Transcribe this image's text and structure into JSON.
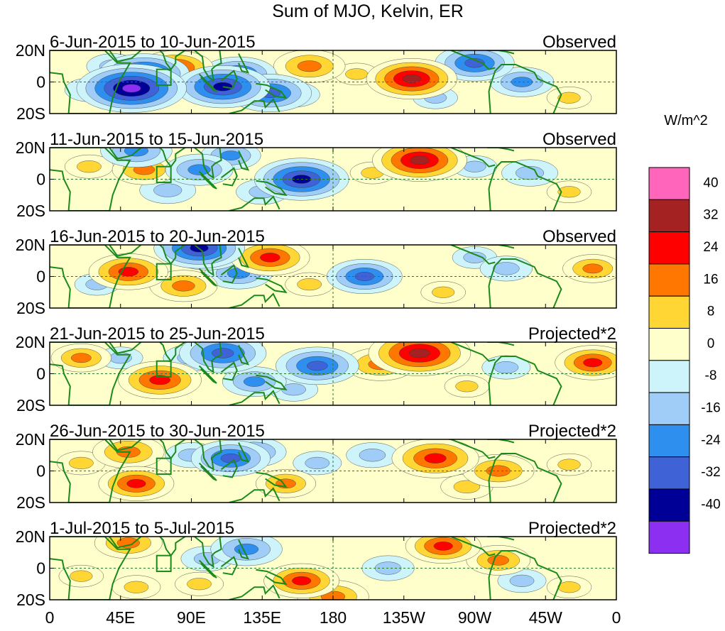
{
  "chart_data": {
    "type": "heatmap",
    "title": "Sum of MJO, Kelvin, ER",
    "colorbar": {
      "label": "W/m^2",
      "levels": [
        "40",
        "32",
        "24",
        "16",
        "8",
        "0",
        "-8",
        "-16",
        "-24",
        "-32",
        "-40"
      ],
      "colors": [
        "#ff66bb",
        "#a52222",
        "#ff0000",
        "#ff7700",
        "#ffd633",
        "#ffffcc",
        "#cdf4fb",
        "#a0cdf8",
        "#2e8fef",
        "#3f63d6",
        "#000096",
        "#8d2ff0"
      ]
    },
    "x_ticks": [
      "0",
      "45E",
      "90E",
      "135E",
      "180",
      "135W",
      "90W",
      "45W",
      "0"
    ],
    "y_ticks": [
      "20N",
      "0",
      "20S"
    ],
    "panels": [
      {
        "dates": "6-Jun-2015 to 10-Jun-2015",
        "label": "Observed",
        "blobs": [
          {
            "lon": 60,
            "lat": 5,
            "v": -34
          },
          {
            "lon": 52,
            "lat": -4,
            "v": -44
          },
          {
            "lon": 110,
            "lat": -3,
            "v": -36
          },
          {
            "lon": 120,
            "lat": 5,
            "v": -26
          },
          {
            "lon": 140,
            "lat": -7,
            "v": -30
          },
          {
            "lon": 80,
            "lat": 9,
            "v": 26
          },
          {
            "lon": 165,
            "lat": 10,
            "v": 24
          },
          {
            "lon": 230,
            "lat": 2,
            "v": 34
          },
          {
            "lon": 155,
            "lat": -8,
            "v": -14
          },
          {
            "lon": 270,
            "lat": 12,
            "v": -28
          },
          {
            "lon": 300,
            "lat": 0,
            "v": -20
          },
          {
            "lon": 195,
            "lat": 5,
            "v": 10
          },
          {
            "lon": 25,
            "lat": -5,
            "v": -12
          },
          {
            "lon": 330,
            "lat": -10,
            "v": 10
          },
          {
            "lon": 40,
            "lat": 10,
            "v": -14
          },
          {
            "lon": 245,
            "lat": -10,
            "v": -10
          }
        ]
      },
      {
        "dates": "11-Jun-2015 to 15-Jun-2015",
        "label": "Observed",
        "blobs": [
          {
            "lon": 160,
            "lat": 0,
            "v": -36
          },
          {
            "lon": 95,
            "lat": 6,
            "v": -22
          },
          {
            "lon": 75,
            "lat": -7,
            "v": -16
          },
          {
            "lon": 235,
            "lat": 12,
            "v": 36
          },
          {
            "lon": 60,
            "lat": 6,
            "v": 20
          },
          {
            "lon": 55,
            "lat": 18,
            "v": -24
          },
          {
            "lon": 135,
            "lat": -8,
            "v": -14
          },
          {
            "lon": 205,
            "lat": 4,
            "v": 10
          },
          {
            "lon": 25,
            "lat": 8,
            "v": 12
          },
          {
            "lon": 305,
            "lat": 4,
            "v": -16
          },
          {
            "lon": 330,
            "lat": -8,
            "v": 10
          },
          {
            "lon": 115,
            "lat": 15,
            "v": -18
          },
          {
            "lon": 270,
            "lat": 8,
            "v": -10
          }
        ]
      },
      {
        "dates": "16-Jun-2015 to 20-Jun-2015",
        "label": "Observed",
        "blobs": [
          {
            "lon": 100,
            "lat": 15,
            "v": -26
          },
          {
            "lon": 120,
            "lat": 2,
            "v": -22
          },
          {
            "lon": 95,
            "lat": 18,
            "v": -34
          },
          {
            "lon": 50,
            "lat": 3,
            "v": 28
          },
          {
            "lon": 140,
            "lat": 12,
            "v": 28
          },
          {
            "lon": 200,
            "lat": 0,
            "v": -26
          },
          {
            "lon": 85,
            "lat": -6,
            "v": 22
          },
          {
            "lon": 165,
            "lat": -5,
            "v": 12
          },
          {
            "lon": 30,
            "lat": -5,
            "v": -10
          },
          {
            "lon": 290,
            "lat": 5,
            "v": -14
          },
          {
            "lon": 345,
            "lat": 5,
            "v": 18
          },
          {
            "lon": 250,
            "lat": -10,
            "v": 10
          },
          {
            "lon": 270,
            "lat": 12,
            "v": -10
          }
        ]
      },
      {
        "dates": "21-Jun-2015 to 25-Jun-2015",
        "label": "Projected*2",
        "blobs": [
          {
            "lon": 70,
            "lat": -4,
            "v": 30
          },
          {
            "lon": 110,
            "lat": 13,
            "v": -32
          },
          {
            "lon": 170,
            "lat": 5,
            "v": -30
          },
          {
            "lon": 235,
            "lat": 13,
            "v": 40
          },
          {
            "lon": 345,
            "lat": 7,
            "v": 26
          },
          {
            "lon": 210,
            "lat": 6,
            "v": 24
          },
          {
            "lon": 130,
            "lat": -5,
            "v": -20
          },
          {
            "lon": 20,
            "lat": 10,
            "v": 18
          },
          {
            "lon": 90,
            "lat": 10,
            "v": -16
          },
          {
            "lon": 290,
            "lat": 4,
            "v": -12
          },
          {
            "lon": 155,
            "lat": -10,
            "v": -12
          },
          {
            "lon": 45,
            "lat": 10,
            "v": -10
          },
          {
            "lon": 265,
            "lat": -8,
            "v": 10
          }
        ]
      },
      {
        "dates": "26-Jun-2015 to 30-Jun-2015",
        "label": "Projected*2",
        "blobs": [
          {
            "lon": 245,
            "lat": 8,
            "v": 32
          },
          {
            "lon": 115,
            "lat": 8,
            "v": -28
          },
          {
            "lon": 50,
            "lat": 12,
            "v": 24
          },
          {
            "lon": 55,
            "lat": -8,
            "v": 26
          },
          {
            "lon": 285,
            "lat": 0,
            "v": 24
          },
          {
            "lon": 150,
            "lat": -8,
            "v": 18
          },
          {
            "lon": 205,
            "lat": 10,
            "v": -14
          },
          {
            "lon": 90,
            "lat": 10,
            "v": -14
          },
          {
            "lon": 20,
            "lat": 5,
            "v": 12
          },
          {
            "lon": 170,
            "lat": 5,
            "v": -12
          },
          {
            "lon": 330,
            "lat": 4,
            "v": 10
          },
          {
            "lon": 265,
            "lat": -10,
            "v": 14
          },
          {
            "lon": 130,
            "lat": 12,
            "v": -20
          }
        ]
      },
      {
        "dates": "1-Jul-2015 to 5-Jul-2015",
        "label": "Projected*2",
        "blobs": [
          {
            "lon": 50,
            "lat": 16,
            "v": 22
          },
          {
            "lon": 125,
            "lat": 12,
            "v": -24
          },
          {
            "lon": 160,
            "lat": -8,
            "v": 26
          },
          {
            "lon": 180,
            "lat": -18,
            "v": 24
          },
          {
            "lon": 250,
            "lat": 14,
            "v": 26
          },
          {
            "lon": 285,
            "lat": 5,
            "v": 20
          },
          {
            "lon": 95,
            "lat": -10,
            "v": 12
          },
          {
            "lon": 100,
            "lat": 6,
            "v": -14
          },
          {
            "lon": 215,
            "lat": 0,
            "v": -14
          },
          {
            "lon": 20,
            "lat": -5,
            "v": 10
          },
          {
            "lon": 330,
            "lat": -12,
            "v": 10
          },
          {
            "lon": 300,
            "lat": -8,
            "v": -12
          },
          {
            "lon": 55,
            "lat": -12,
            "v": 12
          }
        ]
      }
    ]
  }
}
